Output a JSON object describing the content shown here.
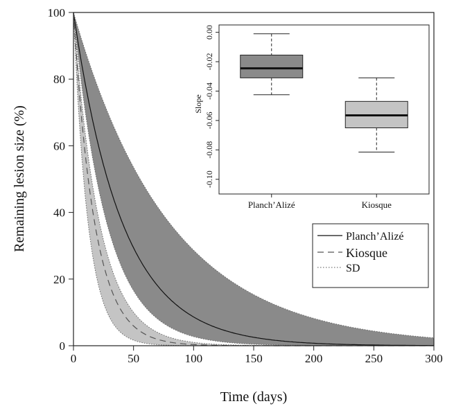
{
  "chart_data": [
    {
      "type": "area",
      "title": "",
      "xlabel": "Time (days)",
      "ylabel": "Remaining lesion size (%)",
      "xlim": [
        0,
        300
      ],
      "ylim": [
        0,
        100
      ],
      "x_ticks": [
        "0",
        "50",
        "100",
        "150",
        "200",
        "250",
        "300"
      ],
      "y_ticks": [
        "0",
        "20",
        "40",
        "60",
        "80",
        "100"
      ],
      "grid": false,
      "legend_position": "right",
      "legend": [
        "Planch’Alizé",
        "Kiosque",
        "SD"
      ],
      "series": [
        {
          "name": "Planch’Alizé",
          "style": "solid",
          "decay_rate": 0.0245,
          "band_decay_rates": [
            0.0125,
            0.036
          ],
          "band_color": "#8a8a8a"
        },
        {
          "name": "Kiosque",
          "style": "dashed",
          "decay_rate": 0.0565,
          "band_decay_rates": [
            0.046,
            0.082
          ],
          "band_color": "#c4c4c4"
        }
      ]
    },
    {
      "type": "box",
      "title": "",
      "ylabel": "Slope",
      "categories": [
        "Planch’Alizé",
        "Kiosque"
      ],
      "ylim": [
        -0.11,
        0.005
      ],
      "y_ticks": [
        "0.00",
        "-0.02",
        "-0.04",
        "-0.06",
        "-0.08",
        "-0.10"
      ],
      "boxes": [
        {
          "name": "Planch’Alizé",
          "min": -0.0425,
          "q1": -0.031,
          "median": -0.0245,
          "q3": -0.0155,
          "max": -0.001,
          "color": "#8a8a8a"
        },
        {
          "name": "Kiosque",
          "min": -0.0815,
          "q1": -0.065,
          "median": -0.0565,
          "q3": -0.047,
          "max": -0.031,
          "color": "#c4c4c4"
        }
      ]
    }
  ]
}
